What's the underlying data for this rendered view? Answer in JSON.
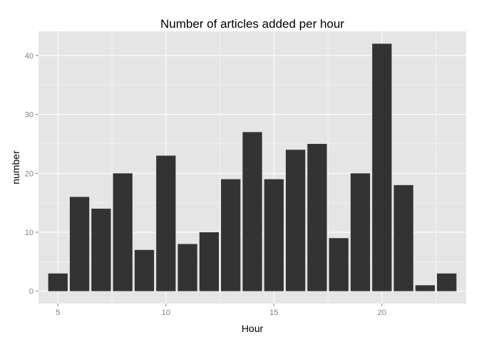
{
  "chart_data": {
    "type": "bar",
    "title": "Number of articles added per hour",
    "xlabel": "Hour",
    "ylabel": "number",
    "x": [
      5,
      6,
      7,
      8,
      9,
      10,
      11,
      12,
      13,
      14,
      15,
      16,
      17,
      18,
      19,
      20,
      21,
      22,
      23
    ],
    "values": [
      3,
      16,
      14,
      20,
      7,
      23,
      8,
      10,
      19,
      27,
      19,
      24,
      25,
      9,
      20,
      42,
      18,
      1,
      3
    ],
    "xlim": [
      4.1,
      23.9
    ],
    "ylim": [
      -2.1,
      44.1
    ],
    "xticks": [
      5,
      10,
      15,
      20
    ],
    "yticks": [
      0,
      10,
      20,
      30,
      40
    ],
    "grid": true,
    "legend": "none",
    "colors": {
      "panel": "#e5e5e5",
      "gridline": "#ffffff",
      "bar": "#333333",
      "tick_label": "#7f7f7f"
    }
  }
}
